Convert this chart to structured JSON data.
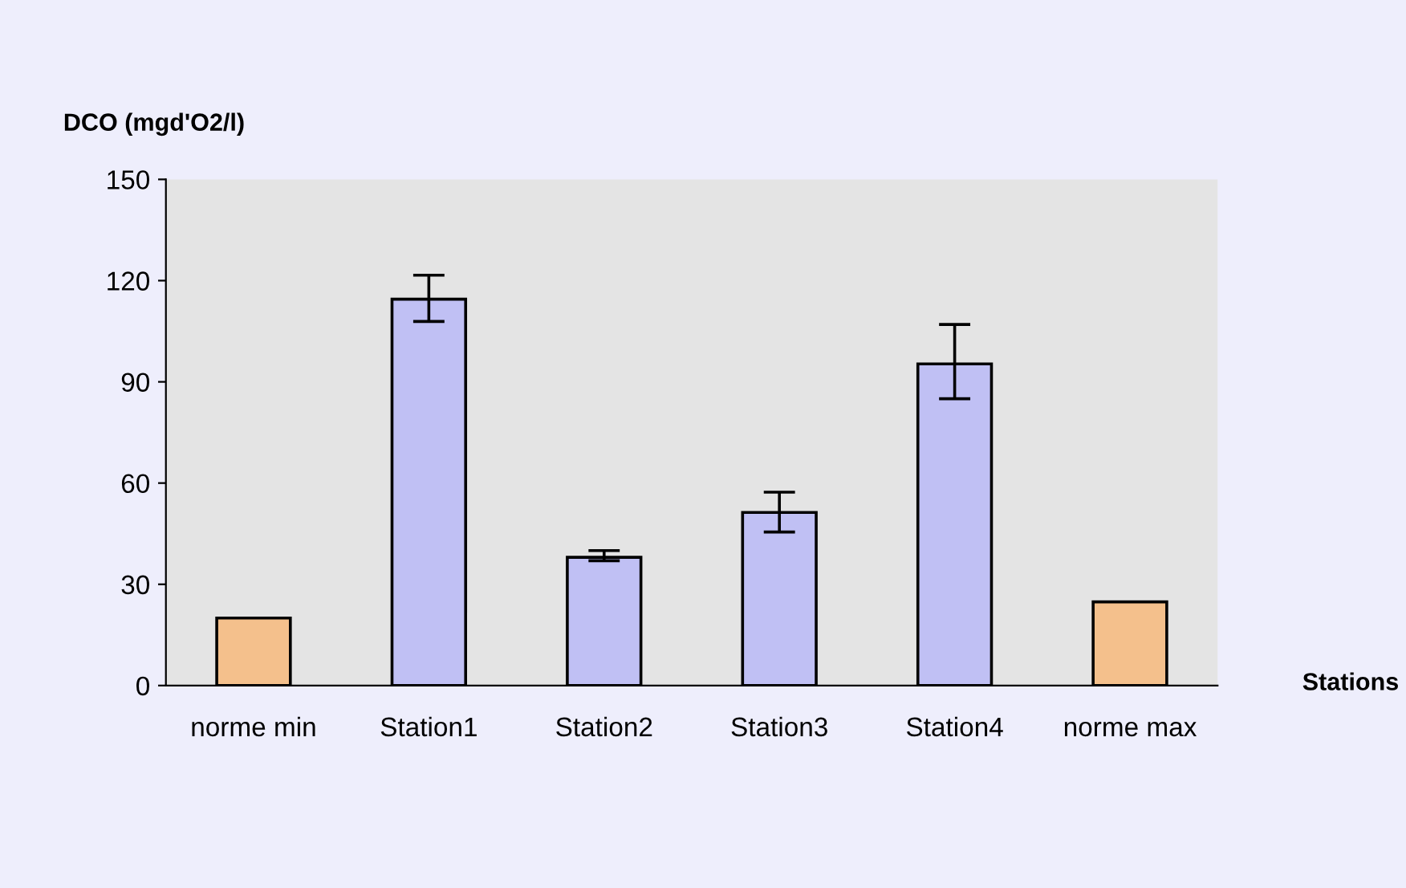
{
  "chart_data": {
    "type": "bar",
    "ylabel": "DCO (mgd'O2/l)",
    "xlabel": "Stations",
    "categories": [
      "norme min",
      "Station1",
      "Station2",
      "Station3",
      "Station4",
      "norme max"
    ],
    "values": [
      20,
      114.5,
      38,
      51.3,
      95.3,
      24.8
    ],
    "colors": [
      "#f4c08c",
      "#c0c0f4",
      "#c0c0f4",
      "#c0c0f4",
      "#c0c0f4",
      "#f4c08c"
    ],
    "errors": [
      null,
      [
        107.9,
        121.6
      ],
      [
        37,
        40
      ],
      [
        45.5,
        57.3
      ],
      [
        85,
        107
      ],
      null
    ],
    "ylim": [
      0,
      150
    ],
    "yticks": [
      0,
      30,
      60,
      90,
      120,
      150
    ],
    "grid": false,
    "legend": false
  }
}
